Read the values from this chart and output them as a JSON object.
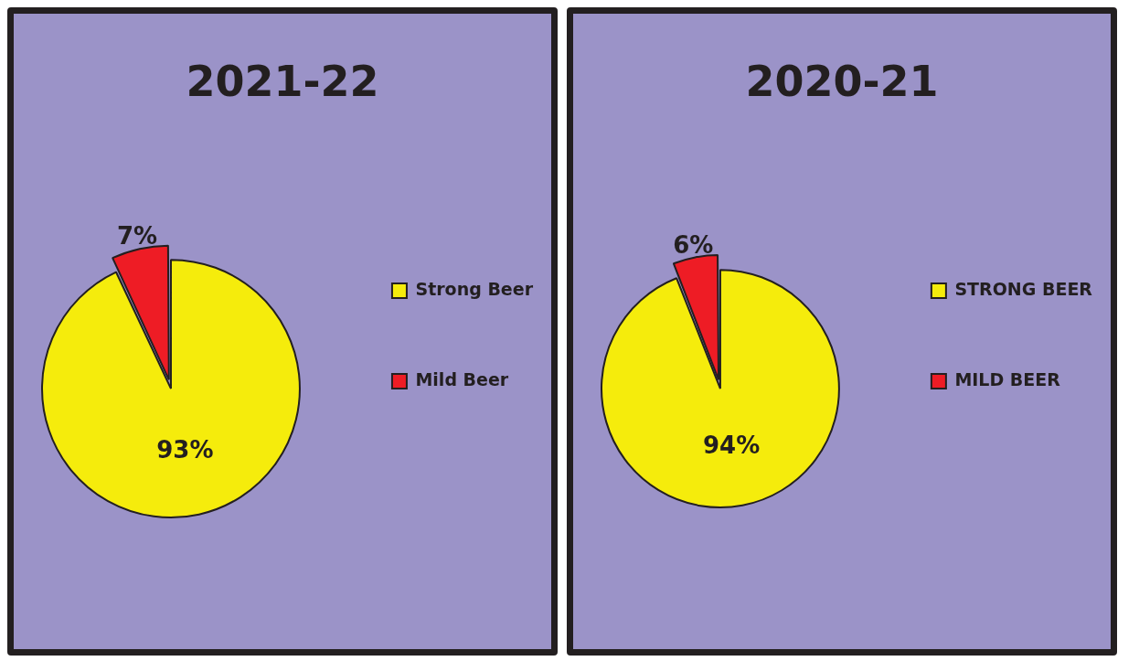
{
  "chart_data": [
    {
      "type": "pie",
      "title": "2021-22",
      "categories": [
        "Strong Beer",
        "Mild Beer"
      ],
      "values": [
        93,
        7
      ],
      "colors": [
        "#f5ec0c",
        "#ee1c25"
      ],
      "value_labels": [
        "93%",
        "7%"
      ],
      "legend": "right"
    },
    {
      "type": "pie",
      "title": "2020-21",
      "categories": [
        "STRONG BEER",
        "MILD BEER"
      ],
      "values": [
        94,
        6
      ],
      "colors": [
        "#f5ec0c",
        "#ee1c25"
      ],
      "value_labels": [
        "94%",
        "6%"
      ],
      "legend": "right"
    }
  ]
}
